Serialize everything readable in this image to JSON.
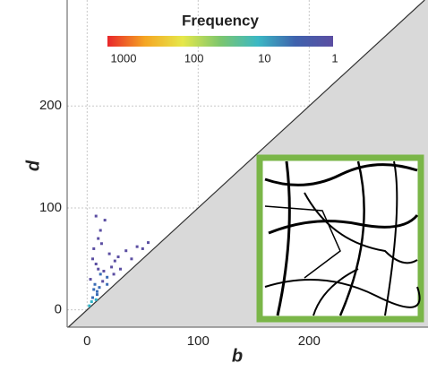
{
  "chart_data": {
    "type": "scatter",
    "x_label": "b",
    "y_label": "d",
    "x": [
      2,
      4,
      5,
      6,
      8,
      3,
      7,
      9,
      10,
      12,
      5,
      8,
      11,
      14,
      6,
      15,
      18,
      20,
      22,
      25,
      10,
      13,
      16,
      28,
      30,
      35,
      40,
      45,
      12,
      9,
      18,
      24,
      50,
      55,
      8
    ],
    "values": [
      4,
      8,
      12,
      20,
      10,
      30,
      25,
      15,
      40,
      35,
      50,
      45,
      22,
      28,
      60,
      38,
      32,
      55,
      42,
      48,
      70,
      65,
      88,
      52,
      40,
      58,
      50,
      62,
      78,
      18,
      25,
      35,
      60,
      66,
      92
    ],
    "colors": [
      "#2fb3c7",
      "#2fb3c7",
      "#3a6bb5",
      "#3a6bb5",
      "#2fb3c7",
      "#5b4ea2",
      "#3a6bb5",
      "#3a6bb5",
      "#5b4ea2",
      "#3a6bb5",
      "#5b4ea2",
      "#5b4ea2",
      "#3a6bb5",
      "#5b4ea2",
      "#5b4ea2",
      "#5b4ea2",
      "#3a6bb5",
      "#5b4ea2",
      "#5b4ea2",
      "#5b4ea2",
      "#5b4ea2",
      "#5b4ea2",
      "#5b4ea2",
      "#5b4ea2",
      "#5b4ea2",
      "#5b4ea2",
      "#5b4ea2",
      "#5b4ea2",
      "#5b4ea2",
      "#3a6bb5",
      "#3a6bb5",
      "#5b4ea2",
      "#5b4ea2",
      "#5b4ea2",
      "#5b4ea2"
    ],
    "xlim": [
      -18,
      307
    ],
    "ylim": [
      -17,
      304
    ],
    "xticks": [
      0,
      100,
      200
    ],
    "yticks": [
      0,
      100,
      200
    ],
    "grid": true,
    "colorbar": {
      "title": "Frequency",
      "ticks": [
        1000,
        100,
        10,
        1
      ],
      "log": true,
      "colors": [
        "#e8262a",
        "#f5a623",
        "#e6e84a",
        "#7cc66e",
        "#3bb8c4",
        "#3f62ad",
        "#5b4ea2"
      ]
    }
  }
}
